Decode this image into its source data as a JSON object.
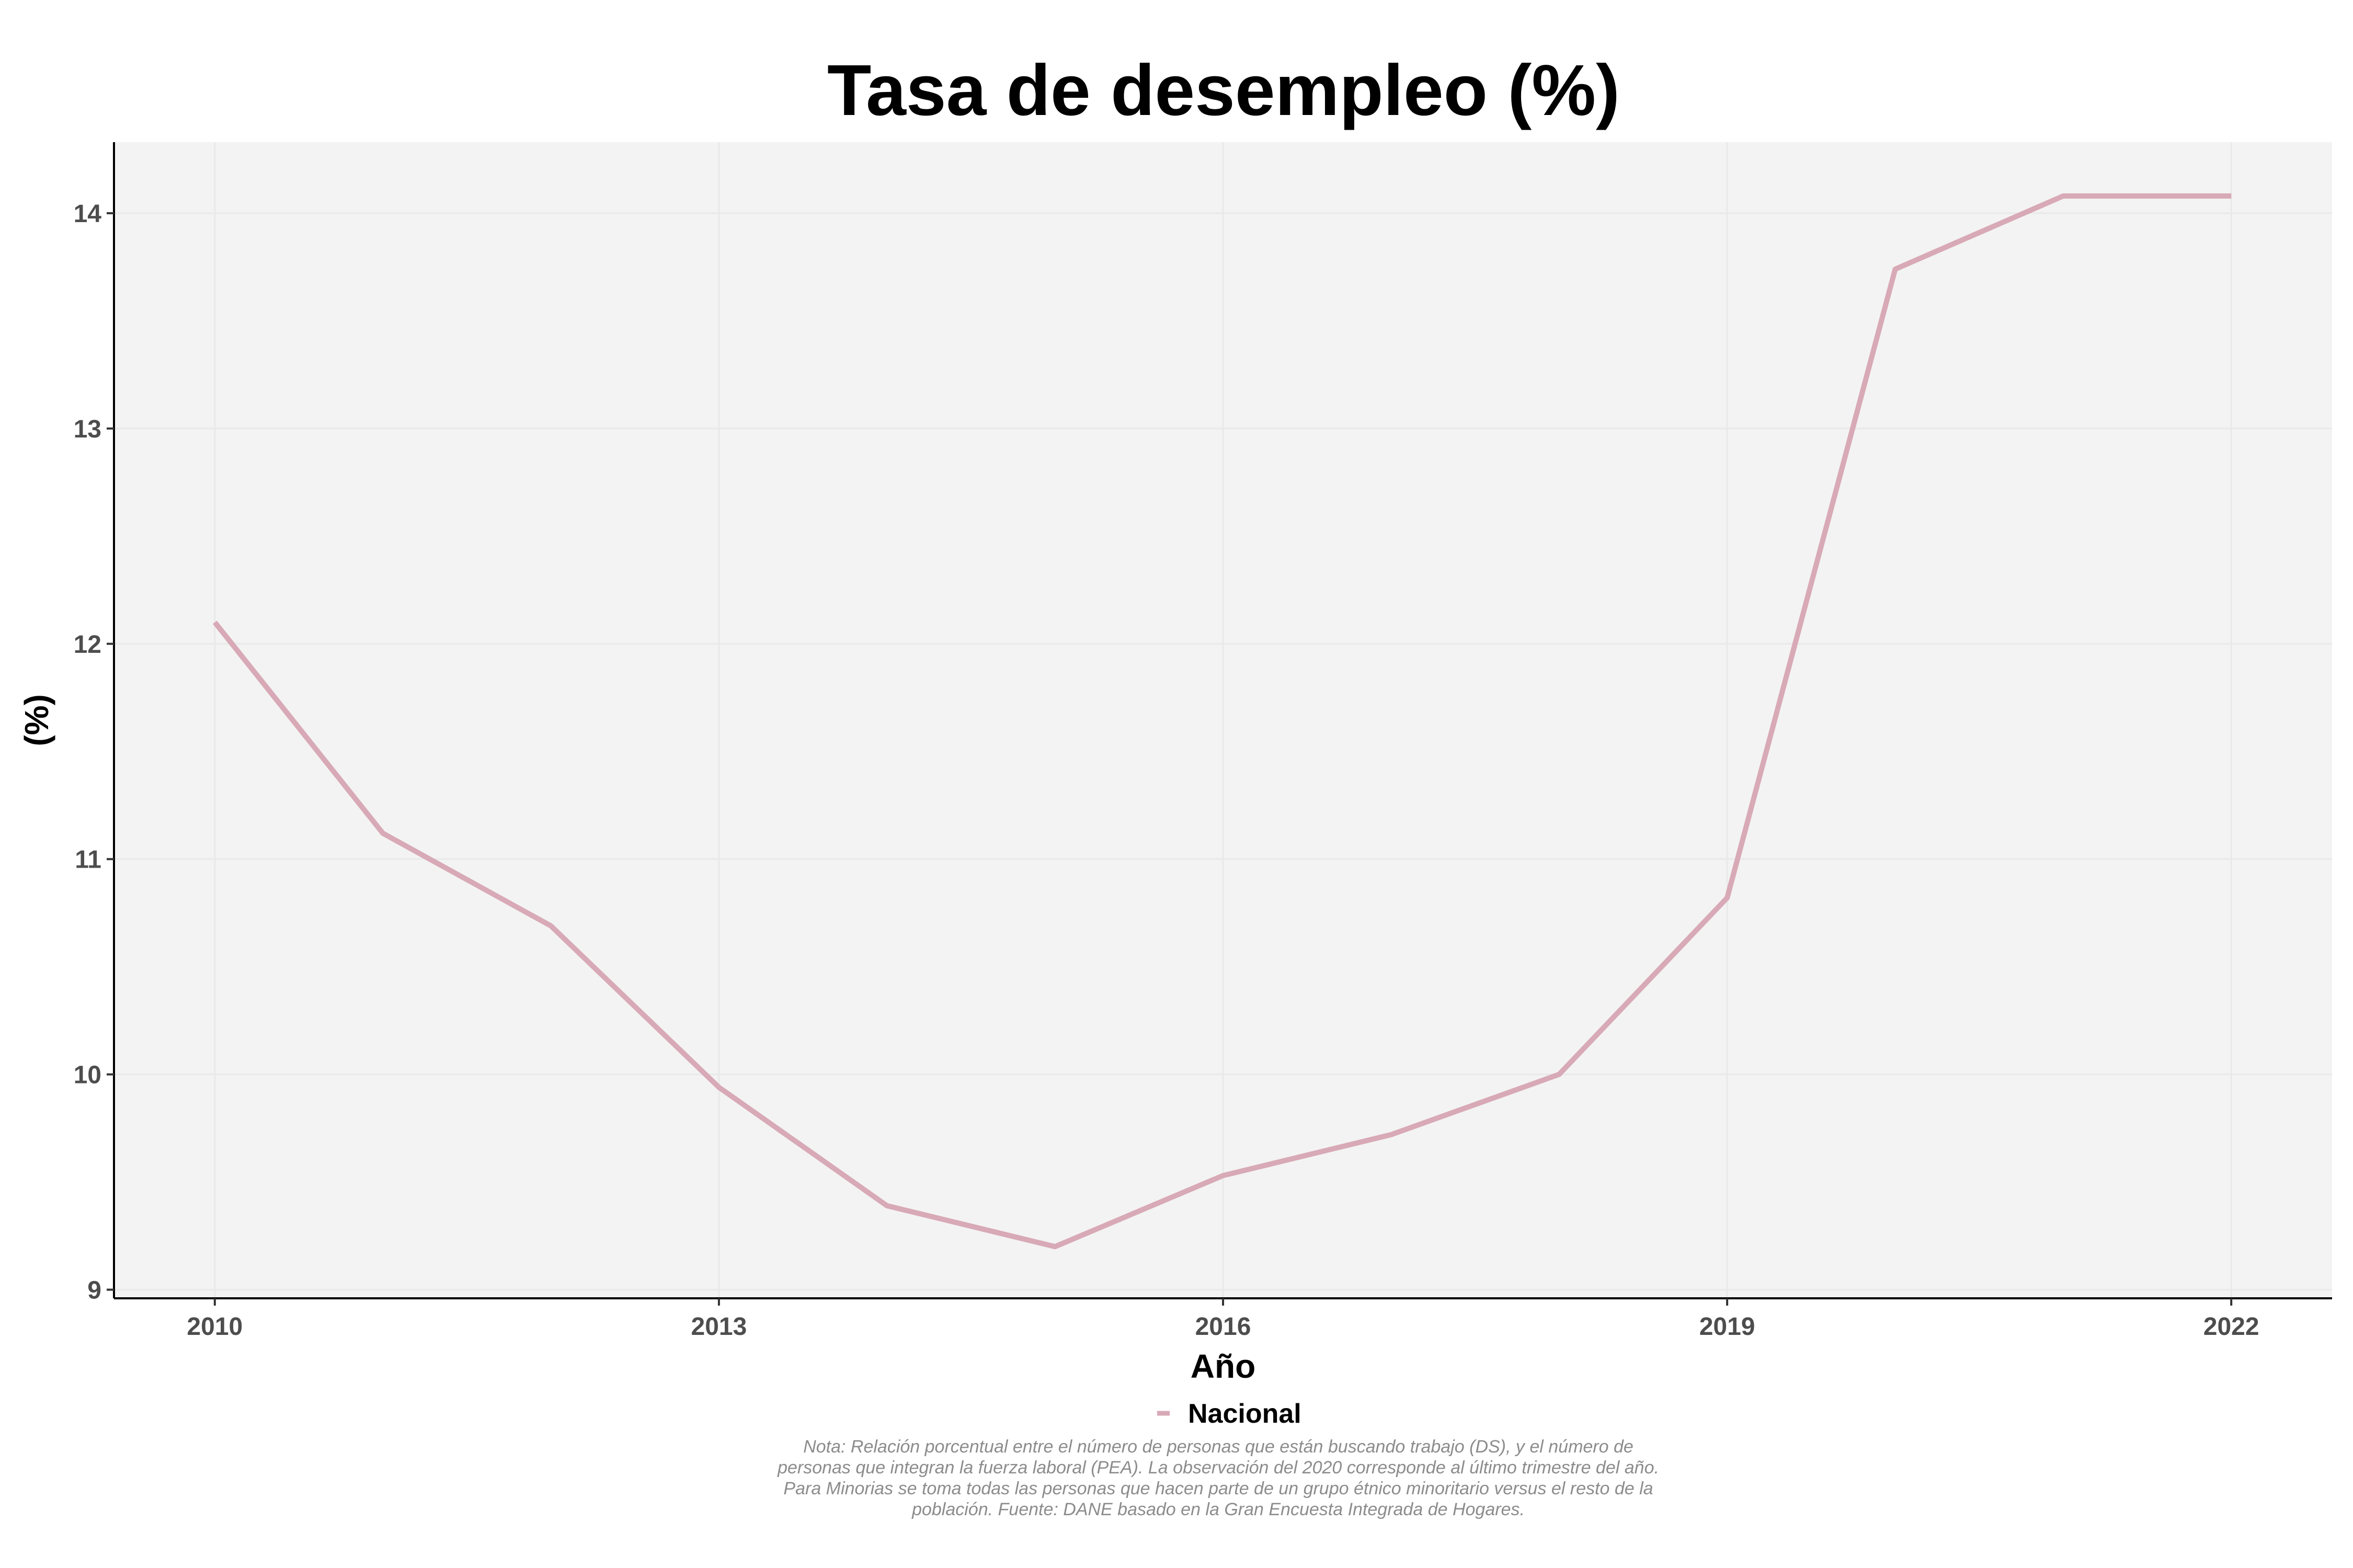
{
  "chart_data": {
    "type": "line",
    "title": "Tasa de desempleo (%)",
    "xlabel": "Año",
    "ylabel": "(%)",
    "x": [
      2010,
      2011,
      2012,
      2013,
      2014,
      2015,
      2016,
      2017,
      2018,
      2019,
      2020,
      2021,
      2022
    ],
    "series": [
      {
        "name": "Nacional",
        "values": [
          12.1,
          11.12,
          10.69,
          9.94,
          9.39,
          9.2,
          9.53,
          9.72,
          10.0,
          10.82,
          13.74,
          14.08,
          14.08
        ],
        "color": "#d8a9b6"
      }
    ],
    "xticks": [
      "2010",
      "2013",
      "2016",
      "2019",
      "2022"
    ],
    "yticks": [
      "9",
      "10",
      "11",
      "12",
      "13",
      "14"
    ],
    "xlim": [
      2009.4,
      2022.6
    ],
    "ylim": [
      8.96,
      14.33
    ],
    "grid": true,
    "legend_position": "bottom",
    "panel_background": "#f3f3f3",
    "note": "Nota: Relación porcentual entre el número de personas que están buscando trabajo (DS), y el número de personas que integran la fuerza laboral (PEA). La observación del 2020 corresponde al último trimestre del año. Para Minorias se toma todas las personas que hacen parte de un grupo étnico minoritario versus el resto de la población. Fuente: DANE basado en la Gran Encuesta Integrada de Hogares."
  }
}
